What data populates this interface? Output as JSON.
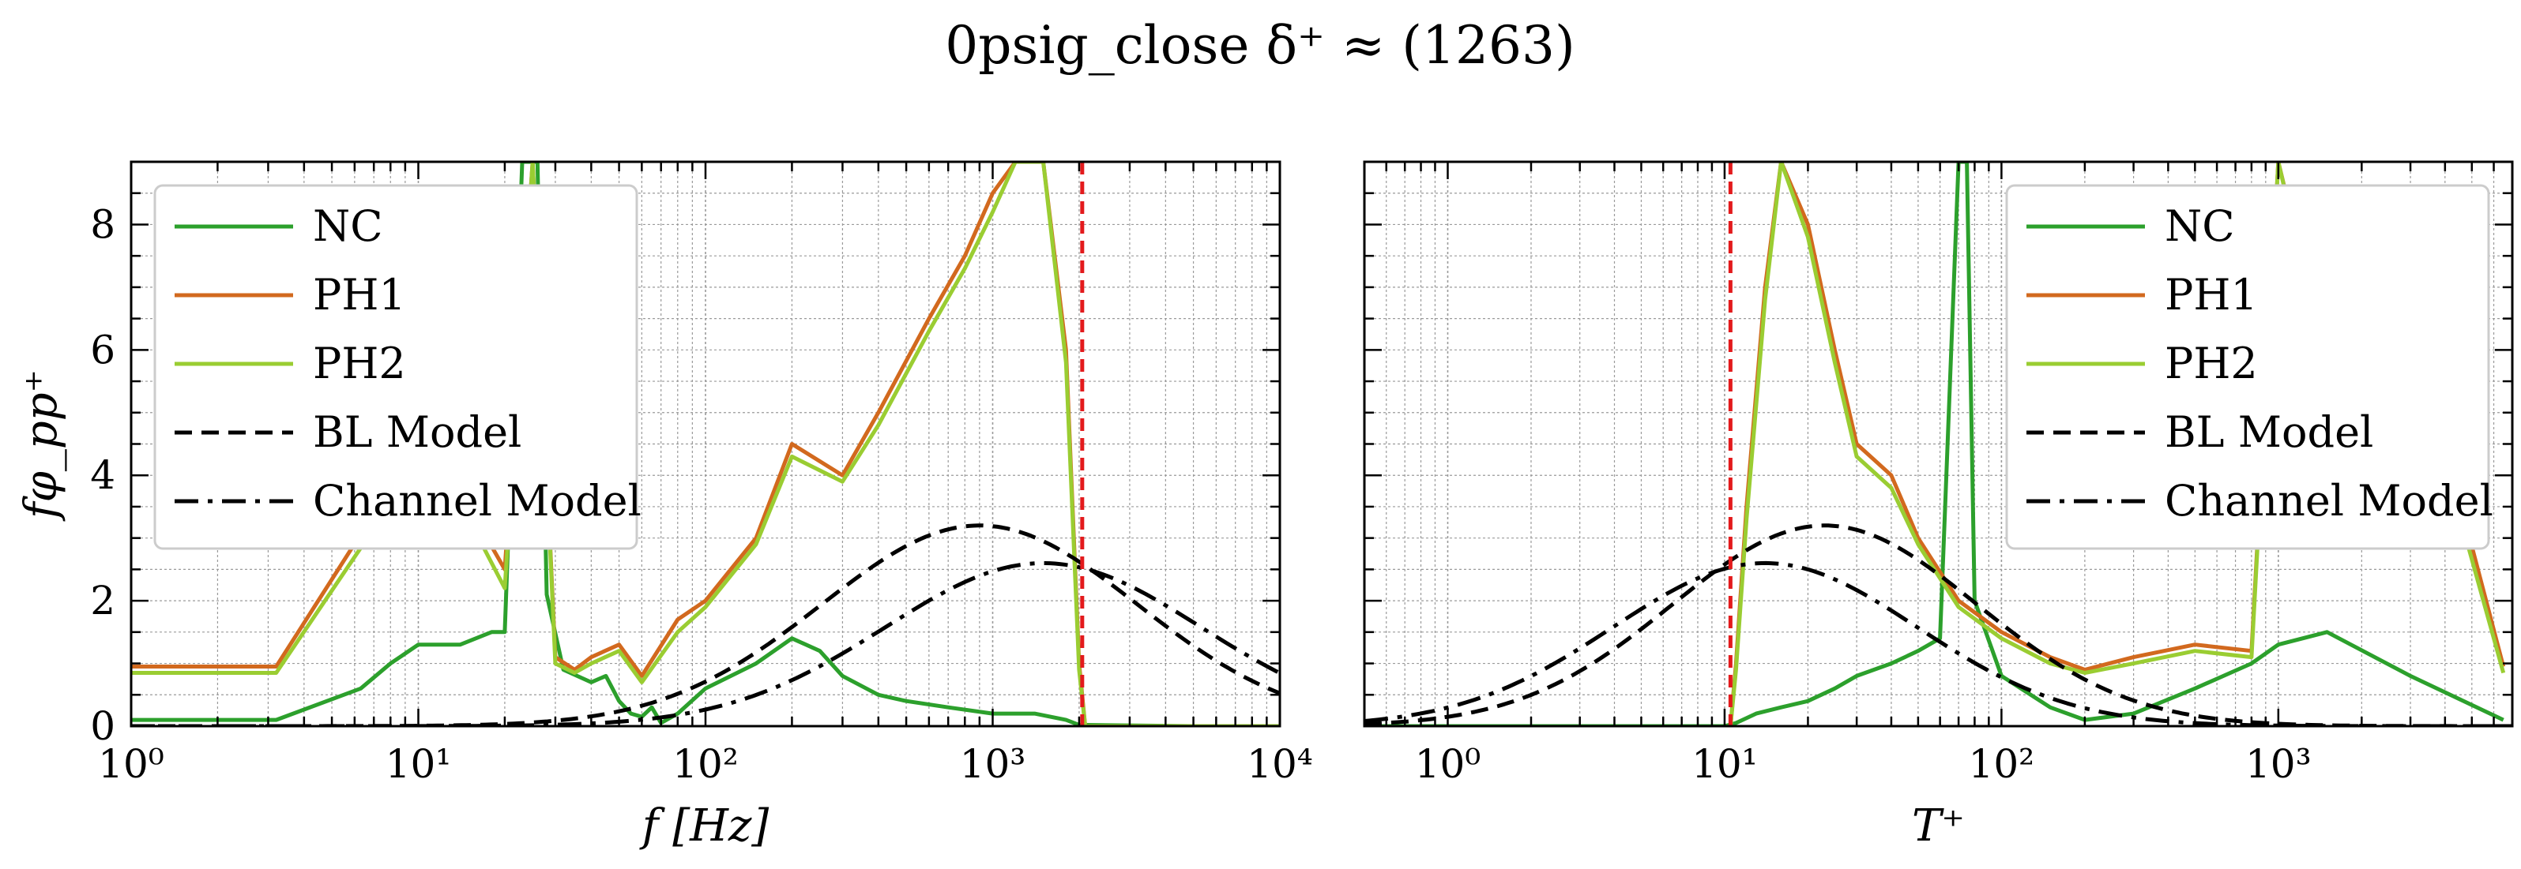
{
  "title": "0psig_close δ⁺ ≈ (1263)",
  "colors": {
    "NC": "#2ca02c",
    "PH1": "#d2691e",
    "PH2": "#9acd32",
    "models": "#000000",
    "marker": "#e31a1c",
    "grid": "#9a9a9a"
  },
  "chart_data": [
    {
      "type": "line",
      "panel": "left",
      "xlabel": "f [Hz]",
      "ylabel": "fφ_pp⁺",
      "xscale": "log",
      "xlim": [
        1,
        10000
      ],
      "ylim": [
        0,
        9
      ],
      "xtick_labels": [
        "10⁰",
        "10¹",
        "10²",
        "10³",
        "10⁴"
      ],
      "ytick_labels": [
        "0",
        "2",
        "4",
        "6",
        "8"
      ],
      "grid": true,
      "legend": "top-left",
      "vertical_marker_x": 2050,
      "series": [
        {
          "name": "NC",
          "style": "solid",
          "color": "#2ca02c",
          "x": [
            1,
            3.2,
            6.3,
            8,
            10,
            14,
            18,
            20,
            23,
            26,
            28,
            32,
            40,
            45,
            50,
            55,
            60,
            65,
            70,
            80,
            100,
            150,
            200,
            250,
            300,
            400,
            500,
            700,
            1000,
            1400,
            1800,
            2000,
            5000,
            10000
          ],
          "y": [
            0.1,
            0.1,
            0.6,
            1.0,
            1.3,
            1.3,
            1.5,
            1.5,
            9.0,
            9.0,
            2.1,
            0.9,
            0.7,
            0.8,
            0.4,
            0.2,
            0.15,
            0.3,
            0.05,
            0.2,
            0.6,
            1.0,
            1.4,
            1.2,
            0.8,
            0.5,
            0.4,
            0.3,
            0.2,
            0.2,
            0.1,
            0.02,
            0.0,
            0.0
          ]
        },
        {
          "name": "PH1",
          "style": "solid",
          "color": "#d2691e",
          "x": [
            1,
            3.2,
            10,
            15,
            20,
            25,
            30,
            35,
            40,
            50,
            60,
            80,
            100,
            150,
            200,
            300,
            400,
            600,
            800,
            1000,
            1200,
            1500,
            1800,
            2000,
            2100,
            10000
          ],
          "y": [
            0.95,
            0.95,
            4.5,
            3.5,
            2.5,
            9.0,
            1.1,
            0.9,
            1.1,
            1.3,
            0.8,
            1.7,
            2.0,
            3.0,
            4.5,
            4.0,
            5.0,
            6.5,
            7.5,
            8.5,
            9.0,
            9.0,
            6.0,
            1.0,
            0.0,
            0.0
          ]
        },
        {
          "name": "PH2",
          "style": "solid",
          "color": "#9acd32",
          "x": [
            1,
            3.2,
            10,
            15,
            20,
            25,
            30,
            35,
            40,
            50,
            60,
            80,
            100,
            150,
            200,
            300,
            400,
            600,
            800,
            1000,
            1200,
            1500,
            1800,
            2000,
            2100,
            10000
          ],
          "y": [
            0.85,
            0.85,
            4.2,
            3.3,
            2.2,
            9.0,
            1.0,
            0.85,
            1.0,
            1.2,
            0.7,
            1.5,
            1.9,
            2.9,
            4.3,
            3.9,
            4.8,
            6.3,
            7.3,
            8.2,
            9.0,
            9.0,
            5.8,
            0.9,
            0.0,
            0.0
          ]
        },
        {
          "name": "BL Model",
          "style": "dashed",
          "color": "#000000",
          "model": {
            "type": "lognormal",
            "peak": 3.2,
            "center": 900,
            "width_decades": 0.55
          }
        },
        {
          "name": "Channel Model",
          "style": "dashdot",
          "color": "#000000",
          "model": {
            "type": "lognormal",
            "peak": 2.6,
            "center": 1500,
            "width_decades": 0.55
          }
        }
      ]
    },
    {
      "type": "line",
      "panel": "right",
      "xlabel": "T⁺",
      "ylabel": "",
      "xscale": "log",
      "xlim": [
        0.5,
        7000
      ],
      "ylim": [
        0,
        9
      ],
      "xtick_labels": [
        "10⁰",
        "10¹",
        "10²",
        "10³"
      ],
      "grid": true,
      "legend": "top-right",
      "vertical_marker_x": 10.5,
      "series": [
        {
          "name": "NC",
          "style": "solid",
          "color": "#2ca02c",
          "x": [
            0.5,
            10,
            11,
            13,
            16,
            20,
            25,
            30,
            40,
            50,
            60,
            70,
            75,
            80,
            100,
            150,
            200,
            300,
            500,
            800,
            1000,
            1500,
            3000,
            6500
          ],
          "y": [
            0.0,
            0.0,
            0.05,
            0.2,
            0.3,
            0.4,
            0.6,
            0.8,
            1.0,
            1.2,
            1.4,
            9.0,
            9.0,
            2.0,
            0.8,
            0.3,
            0.1,
            0.2,
            0.6,
            1.0,
            1.3,
            1.5,
            0.8,
            0.1
          ]
        },
        {
          "name": "PH1",
          "style": "solid",
          "color": "#d2691e",
          "x": [
            10.5,
            11,
            12,
            14,
            16,
            20,
            25,
            30,
            40,
            50,
            70,
            100,
            150,
            200,
            300,
            500,
            800,
            1000,
            2000,
            4000,
            6500
          ],
          "y": [
            0.0,
            1.0,
            3.5,
            7.0,
            9.0,
            8.0,
            6.0,
            4.5,
            4.0,
            3.0,
            2.0,
            1.5,
            1.1,
            0.9,
            1.1,
            1.3,
            1.2,
            9.0,
            3.5,
            4.5,
            0.95
          ]
        },
        {
          "name": "PH2",
          "style": "solid",
          "color": "#9acd32",
          "x": [
            10.5,
            11,
            12,
            14,
            16,
            20,
            25,
            30,
            40,
            50,
            70,
            100,
            150,
            200,
            300,
            500,
            800,
            1000,
            2000,
            4000,
            6500
          ],
          "y": [
            0.0,
            0.9,
            3.3,
            6.8,
            9.0,
            7.8,
            5.8,
            4.3,
            3.8,
            2.9,
            1.9,
            1.4,
            1.0,
            0.85,
            1.0,
            1.2,
            1.1,
            9.0,
            3.3,
            4.2,
            0.85
          ]
        },
        {
          "name": "BL Model",
          "style": "dashed",
          "color": "#000000",
          "model": {
            "type": "lognormal",
            "peak": 3.2,
            "center": 23,
            "width_decades": 0.55
          }
        },
        {
          "name": "Channel Model",
          "style": "dashdot",
          "color": "#000000",
          "model": {
            "type": "lognormal",
            "peak": 2.6,
            "center": 14,
            "width_decades": 0.55
          }
        }
      ]
    }
  ]
}
